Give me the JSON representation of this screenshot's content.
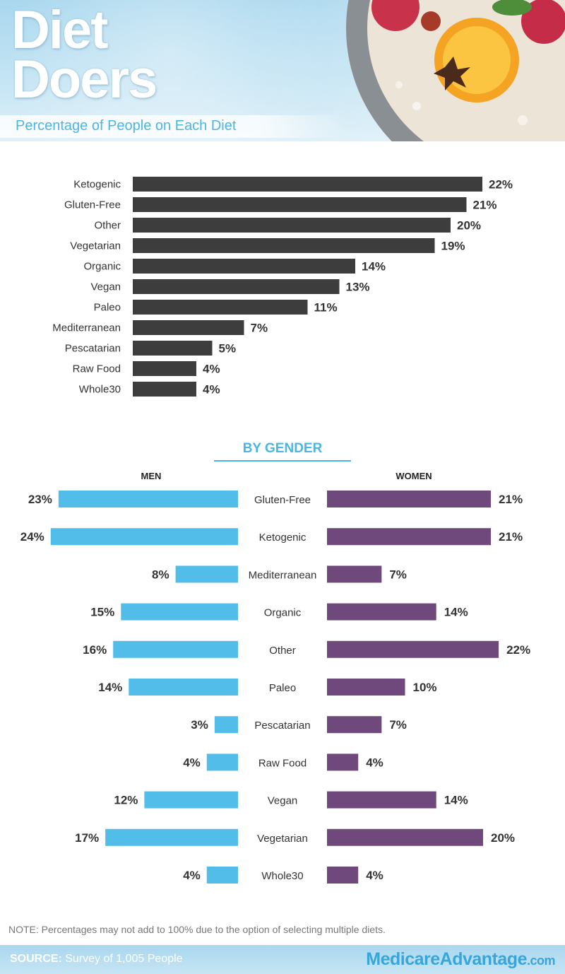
{
  "header": {
    "title_line1": "Diet",
    "title_line2": "Doers",
    "subtitle": "Percentage of People on Each Diet"
  },
  "colors": {
    "overall_bar": "#3d3d3d",
    "men_bar": "#53bde9",
    "women_bar": "#70497c",
    "accent": "#4bb6e3"
  },
  "chart_data": [
    {
      "type": "bar",
      "orientation": "horizontal",
      "title": "Percentage of People on Each Diet",
      "categories": [
        "Ketogenic",
        "Gluten-Free",
        "Other",
        "Vegetarian",
        "Organic",
        "Vegan",
        "Paleo",
        "Mediterranean",
        "Pescatarian",
        "Raw Food",
        "Whole30"
      ],
      "values": [
        22,
        21,
        20,
        19,
        14,
        13,
        11,
        7,
        5,
        4,
        4
      ],
      "value_labels": [
        "22%",
        "21%",
        "20%",
        "19%",
        "14%",
        "13%",
        "11%",
        "7%",
        "5%",
        "4%",
        "4%"
      ],
      "unit": "%"
    },
    {
      "type": "bar",
      "orientation": "horizontal",
      "title": "BY GENDER",
      "categories": [
        "Gluten-Free",
        "Ketogenic",
        "Mediterranean",
        "Organic",
        "Other",
        "Paleo",
        "Pescatarian",
        "Raw Food",
        "Vegan",
        "Vegetarian",
        "Whole30"
      ],
      "series": [
        {
          "name": "MEN",
          "values": [
            23,
            24,
            8,
            15,
            16,
            14,
            3,
            4,
            12,
            17,
            4
          ],
          "value_labels": [
            "23%",
            "24%",
            "8%",
            "15%",
            "16%",
            "14%",
            "3%",
            "4%",
            "12%",
            "17%",
            "4%"
          ]
        },
        {
          "name": "WOMEN",
          "values": [
            21,
            21,
            7,
            14,
            22,
            10,
            7,
            4,
            14,
            20,
            4
          ],
          "value_labels": [
            "21%",
            "21%",
            "7%",
            "14%",
            "22%",
            "10%",
            "7%",
            "4%",
            "14%",
            "20%",
            "4%"
          ]
        }
      ],
      "unit": "%"
    }
  ],
  "gender": {
    "heading": "BY GENDER",
    "men_label": "MEN",
    "women_label": "WOMEN"
  },
  "footer": {
    "note": "NOTE: Percentages may not add to 100% due to the option of selecting multiple diets.",
    "source_label": "SOURCE:",
    "source_text": " Survey of 1,005 People",
    "logo_main": "MedicareAdvantage",
    "logo_suffix": ".com"
  }
}
